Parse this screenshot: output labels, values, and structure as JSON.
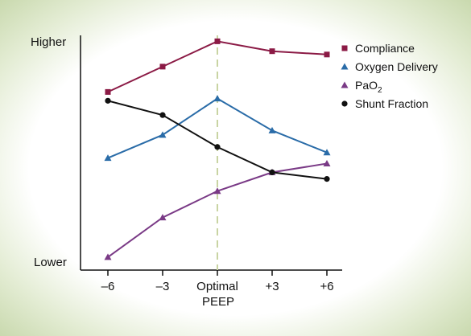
{
  "chart_data": {
    "type": "line",
    "title": "",
    "xlabel": "PEEP",
    "ylabel": "",
    "categories": [
      "–6",
      "–3",
      "Optimal",
      "+3",
      "+6"
    ],
    "y_axis_labels": {
      "high": "Higher",
      "low": "Lower"
    },
    "ylim": [
      0,
      100
    ],
    "reference_line": {
      "category": "Optimal",
      "style": "dashed",
      "color": "#c9d4a3"
    },
    "legend_position": "top-right",
    "grid": false,
    "series": [
      {
        "name": "Compliance",
        "name_sub": "",
        "marker": "square",
        "color": "#8b1a45",
        "values": [
          76.5,
          88,
          99.5,
          95,
          93.5
        ]
      },
      {
        "name": "Oxygen Delivery",
        "name_sub": "",
        "marker": "triangle",
        "color": "#2a6ca8",
        "values": [
          46.5,
          57,
          73.5,
          59,
          49
        ]
      },
      {
        "name": "PaO",
        "name_sub": "2",
        "marker": "triangle",
        "color": "#7a3a86",
        "values": [
          1.5,
          19.5,
          31.5,
          40,
          44
        ]
      },
      {
        "name": "Shunt Fraction",
        "name_sub": "",
        "marker": "circle",
        "color": "#111111",
        "values": [
          72.5,
          66,
          51.5,
          40,
          37
        ]
      }
    ]
  }
}
